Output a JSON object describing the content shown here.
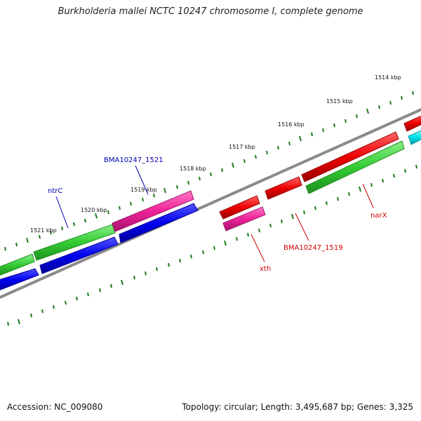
{
  "title": "Burkholderia mallei NCTC 10247 chromosome I, complete genome",
  "footer": {
    "accession": "Accession: NC_009080",
    "summary": "Topology: circular; Length: 3,495,687 bp; Genes: 3,325"
  },
  "ticks": [
    {
      "label": "1514 kbp"
    },
    {
      "label": "1515 kbp"
    },
    {
      "label": "1516 kbp"
    },
    {
      "label": "1517 kbp"
    },
    {
      "label": "1518 kbp"
    },
    {
      "label": "1519 kbp"
    },
    {
      "label": "1520 kbp"
    },
    {
      "label": "1521 kbp"
    }
  ],
  "gene_labels": [
    {
      "name": "BMA10247_1521",
      "color": "#0000aa"
    },
    {
      "name": "ntrC",
      "color": "#0000aa"
    },
    {
      "name": "narX",
      "color": "#cc0000"
    },
    {
      "name": "BMA10247_1519",
      "color": "#cc0000"
    },
    {
      "name": "xth",
      "color": "#cc0000"
    }
  ],
  "colors": {
    "backbone": "#8a8a8a",
    "tick": "#1e7a1e",
    "green_feature": "#33cc33",
    "blue_feature": "#0000ee",
    "magenta_feature": "#ee2299",
    "red_feature": "#ee0000",
    "cyan_feature": "#00e5ee"
  }
}
